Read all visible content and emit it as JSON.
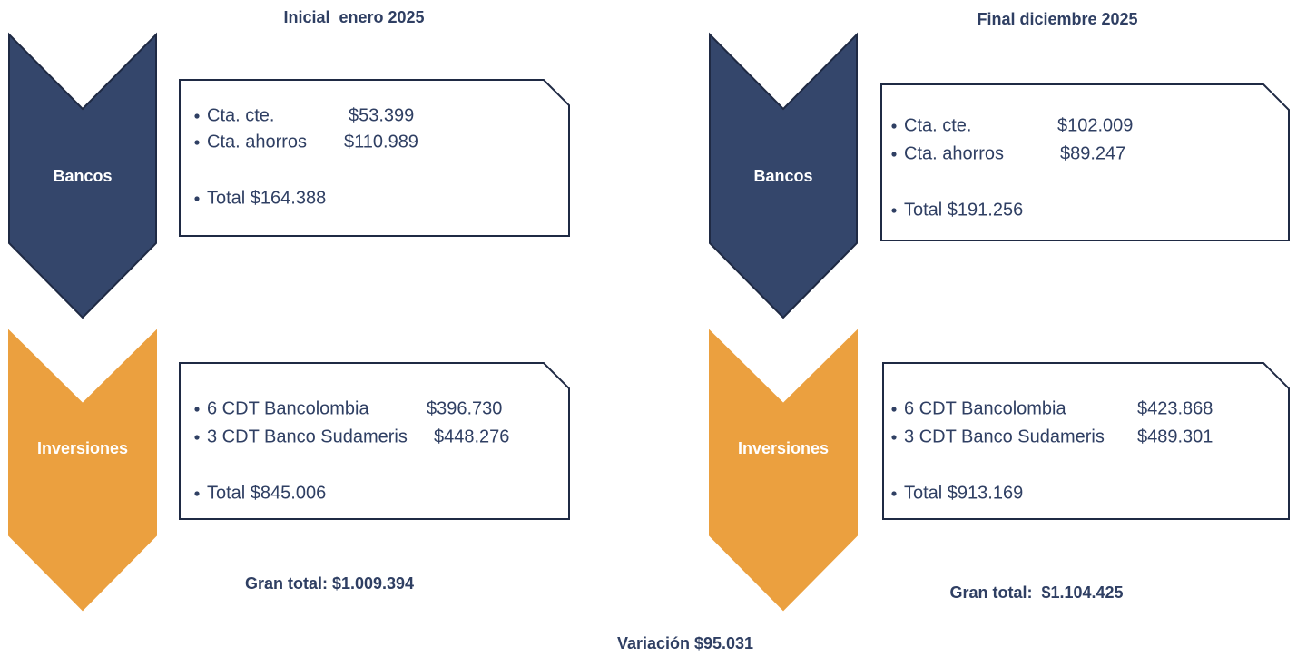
{
  "panels": [
    {
      "title": "Inicial  enero 2025",
      "sections": [
        {
          "label": "Bancos",
          "items": [
            {
              "name": "Cta. cte.",
              "amount": "$53.399"
            },
            {
              "name": "Cta. ahorros",
              "amount": "$110.989"
            }
          ],
          "total": "Total $164.388"
        },
        {
          "label": "Inversiones",
          "items": [
            {
              "name": "6 CDT Bancolombia",
              "amount": "$396.730"
            },
            {
              "name": "3 CDT Banco Sudameris",
              "amount": "$448.276"
            }
          ],
          "total": "Total $845.006"
        }
      ],
      "grand_total": "Gran total: $1.009.394"
    },
    {
      "title": "Final diciembre 2025",
      "sections": [
        {
          "label": "Bancos",
          "items": [
            {
              "name": "Cta. cte.",
              "amount": "$102.009"
            },
            {
              "name": "Cta. ahorros",
              "amount": "$89.247"
            }
          ],
          "total": "Total $191.256"
        },
        {
          "label": "Inversiones",
          "items": [
            {
              "name": "6 CDT Bancolombia",
              "amount": "$423.868"
            },
            {
              "name": "3 CDT Banco Sudameris",
              "amount": "$489.301"
            }
          ],
          "total": "Total $913.169"
        }
      ],
      "grand_total": "Gran total:  $1.104.425"
    }
  ],
  "variation": "Variación $95.031"
}
